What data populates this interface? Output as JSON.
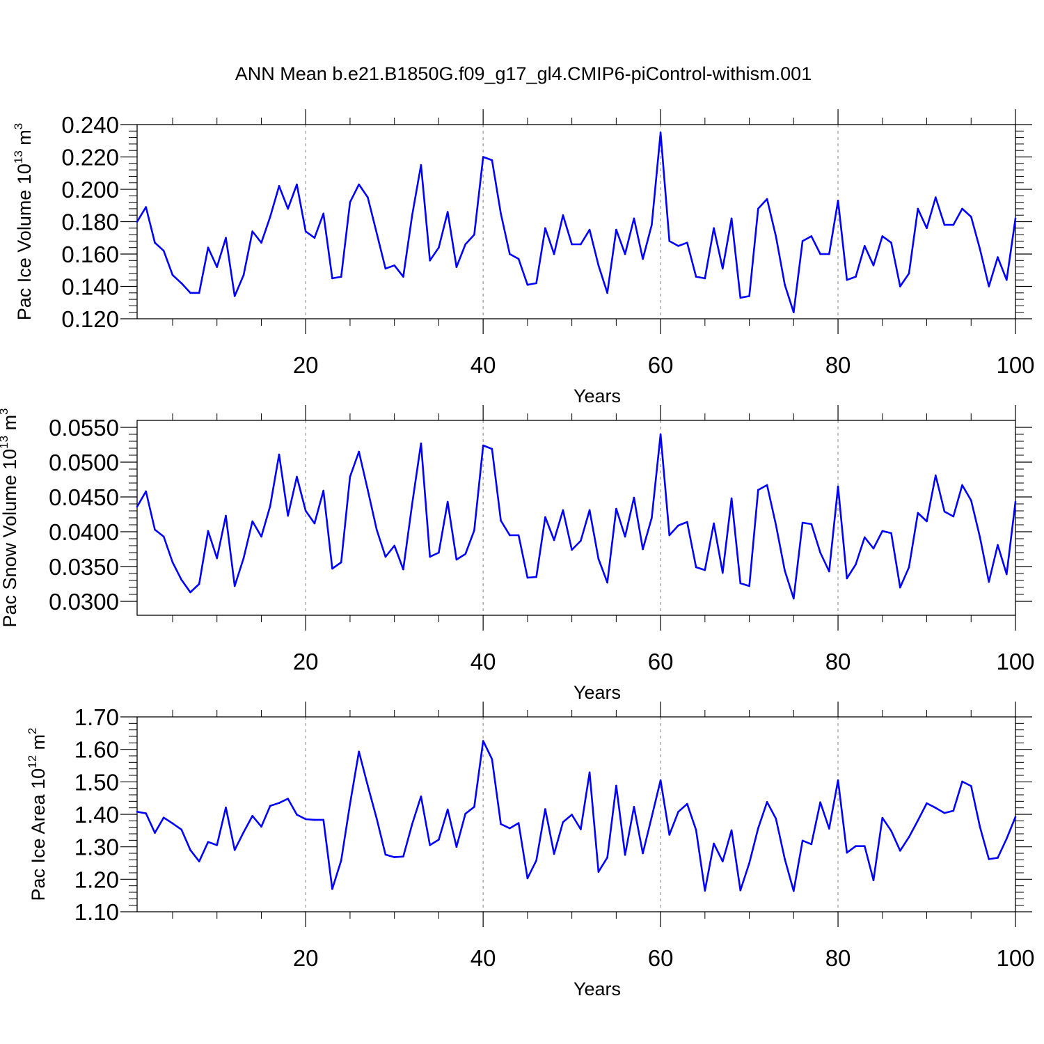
{
  "title": "ANN Mean b.e21.B1850G.f09_g17_gl4.CMIP6-piControl-withism.001",
  "colors": {
    "line": "#0000ff",
    "axis": "#000000",
    "grid": "#808080"
  },
  "chart_data": [
    {
      "type": "line",
      "title": "",
      "xlabel": "Years",
      "ylabel": {
        "text": "Pac Ice Volume 10",
        "sup": "13",
        "unit": " m",
        "unit_sup": "3"
      },
      "xlim": [
        1,
        100
      ],
      "ylim": [
        0.12,
        0.24
      ],
      "xticks": [
        20,
        40,
        60,
        80,
        100
      ],
      "xtick_labels": [
        "20",
        "40",
        "60",
        "80",
        "100"
      ],
      "yticks": [
        0.12,
        0.14,
        0.16,
        0.18,
        0.2,
        0.22,
        0.24
      ],
      "ytick_labels": [
        "0.120",
        "0.140",
        "0.160",
        "0.180",
        "0.200",
        "0.220",
        "0.240"
      ],
      "grid": "dashed vertical lines at x ticks",
      "series": [
        {
          "x": [
            1,
            2,
            3,
            4,
            5,
            6,
            7,
            8,
            9,
            10,
            11,
            12,
            13,
            14,
            15,
            16,
            17,
            18,
            19,
            20,
            21,
            22,
            23,
            24,
            25,
            26,
            27,
            28,
            29,
            30,
            31,
            32,
            33,
            34,
            35,
            36,
            37,
            38,
            39,
            40,
            41,
            42,
            43,
            44,
            45,
            46,
            47,
            48,
            49,
            50,
            51,
            52,
            53,
            54,
            55,
            56,
            57,
            58,
            59,
            60,
            61,
            62,
            63,
            64,
            65,
            66,
            67,
            68,
            69,
            70,
            71,
            72,
            73,
            74,
            75,
            76,
            77,
            78,
            79,
            80,
            81,
            82,
            83,
            84,
            85,
            86,
            87,
            88,
            89,
            90,
            91,
            92,
            93,
            94,
            95,
            96,
            97,
            98,
            99,
            100
          ],
          "values": [
            0.18,
            0.189,
            0.167,
            0.162,
            0.147,
            0.142,
            0.136,
            0.136,
            0.164,
            0.152,
            0.17,
            0.134,
            0.147,
            0.174,
            0.167,
            0.183,
            0.202,
            0.188,
            0.203,
            0.174,
            0.17,
            0.185,
            0.145,
            0.146,
            0.192,
            0.203,
            0.195,
            0.173,
            0.151,
            0.153,
            0.146,
            0.184,
            0.215,
            0.156,
            0.164,
            0.186,
            0.152,
            0.166,
            0.172,
            0.22,
            0.218,
            0.185,
            0.16,
            0.157,
            0.141,
            0.142,
            0.176,
            0.16,
            0.184,
            0.166,
            0.166,
            0.175,
            0.153,
            0.136,
            0.175,
            0.16,
            0.182,
            0.157,
            0.178,
            0.235,
            0.168,
            0.165,
            0.167,
            0.146,
            0.145,
            0.176,
            0.151,
            0.182,
            0.133,
            0.134,
            0.188,
            0.194,
            0.171,
            0.141,
            0.124,
            0.168,
            0.171,
            0.16,
            0.16,
            0.193,
            0.144,
            0.146,
            0.165,
            0.153,
            0.171,
            0.167,
            0.14,
            0.148,
            0.188,
            0.176,
            0.195,
            0.178,
            0.178,
            0.188,
            0.183,
            0.163,
            0.14,
            0.158,
            0.144,
            0.182
          ]
        }
      ]
    },
    {
      "type": "line",
      "title": "",
      "xlabel": "Years",
      "ylabel": {
        "text": "Pac Snow Volume 10",
        "sup": "13",
        "unit": " m",
        "unit_sup": "3"
      },
      "xlim": [
        1,
        100
      ],
      "ylim": [
        0.028,
        0.056
      ],
      "xticks": [
        20,
        40,
        60,
        80,
        100
      ],
      "xtick_labels": [
        "20",
        "40",
        "60",
        "80",
        "100"
      ],
      "yticks": [
        0.03,
        0.035,
        0.04,
        0.045,
        0.05,
        0.055
      ],
      "ytick_labels": [
        "0.0300",
        "0.0350",
        "0.0400",
        "0.0450",
        "0.0500",
        "0.0550"
      ],
      "grid": "dashed vertical lines at x ticks",
      "series": [
        {
          "x": [
            1,
            2,
            3,
            4,
            5,
            6,
            7,
            8,
            9,
            10,
            11,
            12,
            13,
            14,
            15,
            16,
            17,
            18,
            19,
            20,
            21,
            22,
            23,
            24,
            25,
            26,
            27,
            28,
            29,
            30,
            31,
            32,
            33,
            34,
            35,
            36,
            37,
            38,
            39,
            40,
            41,
            42,
            43,
            44,
            45,
            46,
            47,
            48,
            49,
            50,
            51,
            52,
            53,
            54,
            55,
            56,
            57,
            58,
            59,
            60,
            61,
            62,
            63,
            64,
            65,
            66,
            67,
            68,
            69,
            70,
            71,
            72,
            73,
            74,
            75,
            76,
            77,
            78,
            79,
            80,
            81,
            82,
            83,
            84,
            85,
            86,
            87,
            88,
            89,
            90,
            91,
            92,
            93,
            94,
            95,
            96,
            97,
            98,
            99,
            100
          ],
          "values": [
            0.0436,
            0.0458,
            0.0403,
            0.0393,
            0.0356,
            0.0331,
            0.0313,
            0.0325,
            0.0401,
            0.0362,
            0.0423,
            0.0322,
            0.0362,
            0.0415,
            0.0393,
            0.0437,
            0.0511,
            0.0423,
            0.0479,
            0.043,
            0.0412,
            0.0459,
            0.0347,
            0.0356,
            0.0479,
            0.0515,
            0.046,
            0.0403,
            0.0364,
            0.038,
            0.0346,
            0.044,
            0.0527,
            0.0364,
            0.037,
            0.0443,
            0.036,
            0.0368,
            0.0402,
            0.0524,
            0.0519,
            0.0416,
            0.0395,
            0.0395,
            0.0334,
            0.0335,
            0.0421,
            0.0388,
            0.0431,
            0.0374,
            0.0387,
            0.0431,
            0.0361,
            0.0327,
            0.0433,
            0.0393,
            0.0449,
            0.0375,
            0.042,
            0.054,
            0.0395,
            0.0409,
            0.0414,
            0.0349,
            0.0345,
            0.0412,
            0.0341,
            0.0448,
            0.0326,
            0.0322,
            0.046,
            0.0467,
            0.041,
            0.0344,
            0.0304,
            0.0413,
            0.0411,
            0.037,
            0.0343,
            0.0465,
            0.0333,
            0.0353,
            0.0392,
            0.0376,
            0.0401,
            0.0398,
            0.032,
            0.0349,
            0.0427,
            0.0415,
            0.0481,
            0.0429,
            0.0422,
            0.0467,
            0.0445,
            0.0392,
            0.0328,
            0.0381,
            0.0339,
            0.0443
          ]
        }
      ]
    },
    {
      "type": "line",
      "title": "",
      "xlabel": "Years",
      "ylabel": {
        "text": "Pac Ice Area 10",
        "sup": "12",
        "unit": " m",
        "unit_sup": "2"
      },
      "xlim": [
        1,
        100
      ],
      "ylim": [
        1.1,
        1.7
      ],
      "xticks": [
        20,
        40,
        60,
        80,
        100
      ],
      "xtick_labels": [
        "20",
        "40",
        "60",
        "80",
        "100"
      ],
      "yticks": [
        1.1,
        1.2,
        1.3,
        1.4,
        1.5,
        1.6,
        1.7
      ],
      "ytick_labels": [
        "1.10",
        "1.20",
        "1.30",
        "1.40",
        "1.50",
        "1.60",
        "1.70"
      ],
      "grid": "dashed vertical lines at x ticks",
      "series": [
        {
          "x": [
            1,
            2,
            3,
            4,
            5,
            6,
            7,
            8,
            9,
            10,
            11,
            12,
            13,
            14,
            15,
            16,
            17,
            18,
            19,
            20,
            21,
            22,
            23,
            24,
            25,
            26,
            27,
            28,
            29,
            30,
            31,
            32,
            33,
            34,
            35,
            36,
            37,
            38,
            39,
            40,
            41,
            42,
            43,
            44,
            45,
            46,
            47,
            48,
            49,
            50,
            51,
            52,
            53,
            54,
            55,
            56,
            57,
            58,
            59,
            60,
            61,
            62,
            63,
            64,
            65,
            66,
            67,
            68,
            69,
            70,
            71,
            72,
            73,
            74,
            75,
            76,
            77,
            78,
            79,
            80,
            81,
            82,
            83,
            84,
            85,
            86,
            87,
            88,
            89,
            90,
            91,
            92,
            93,
            94,
            95,
            96,
            97,
            98,
            99,
            100
          ],
          "values": [
            1.408,
            1.403,
            1.343,
            1.39,
            1.372,
            1.353,
            1.29,
            1.255,
            1.315,
            1.305,
            1.421,
            1.29,
            1.345,
            1.395,
            1.362,
            1.426,
            1.435,
            1.448,
            1.399,
            1.385,
            1.383,
            1.383,
            1.17,
            1.258,
            1.432,
            1.593,
            1.488,
            1.387,
            1.276,
            1.268,
            1.27,
            1.37,
            1.455,
            1.305,
            1.322,
            1.415,
            1.3,
            1.402,
            1.423,
            1.626,
            1.57,
            1.37,
            1.357,
            1.373,
            1.203,
            1.258,
            1.416,
            1.278,
            1.376,
            1.399,
            1.354,
            1.529,
            1.223,
            1.267,
            1.488,
            1.275,
            1.423,
            1.28,
            1.392,
            1.505,
            1.337,
            1.408,
            1.432,
            1.352,
            1.165,
            1.31,
            1.255,
            1.351,
            1.166,
            1.25,
            1.357,
            1.438,
            1.387,
            1.262,
            1.164,
            1.319,
            1.308,
            1.437,
            1.356,
            1.505,
            1.282,
            1.302,
            1.302,
            1.197,
            1.389,
            1.349,
            1.288,
            1.33,
            1.381,
            1.434,
            1.42,
            1.404,
            1.411,
            1.501,
            1.487,
            1.361,
            1.262,
            1.266,
            1.325,
            1.392
          ]
        }
      ]
    }
  ]
}
